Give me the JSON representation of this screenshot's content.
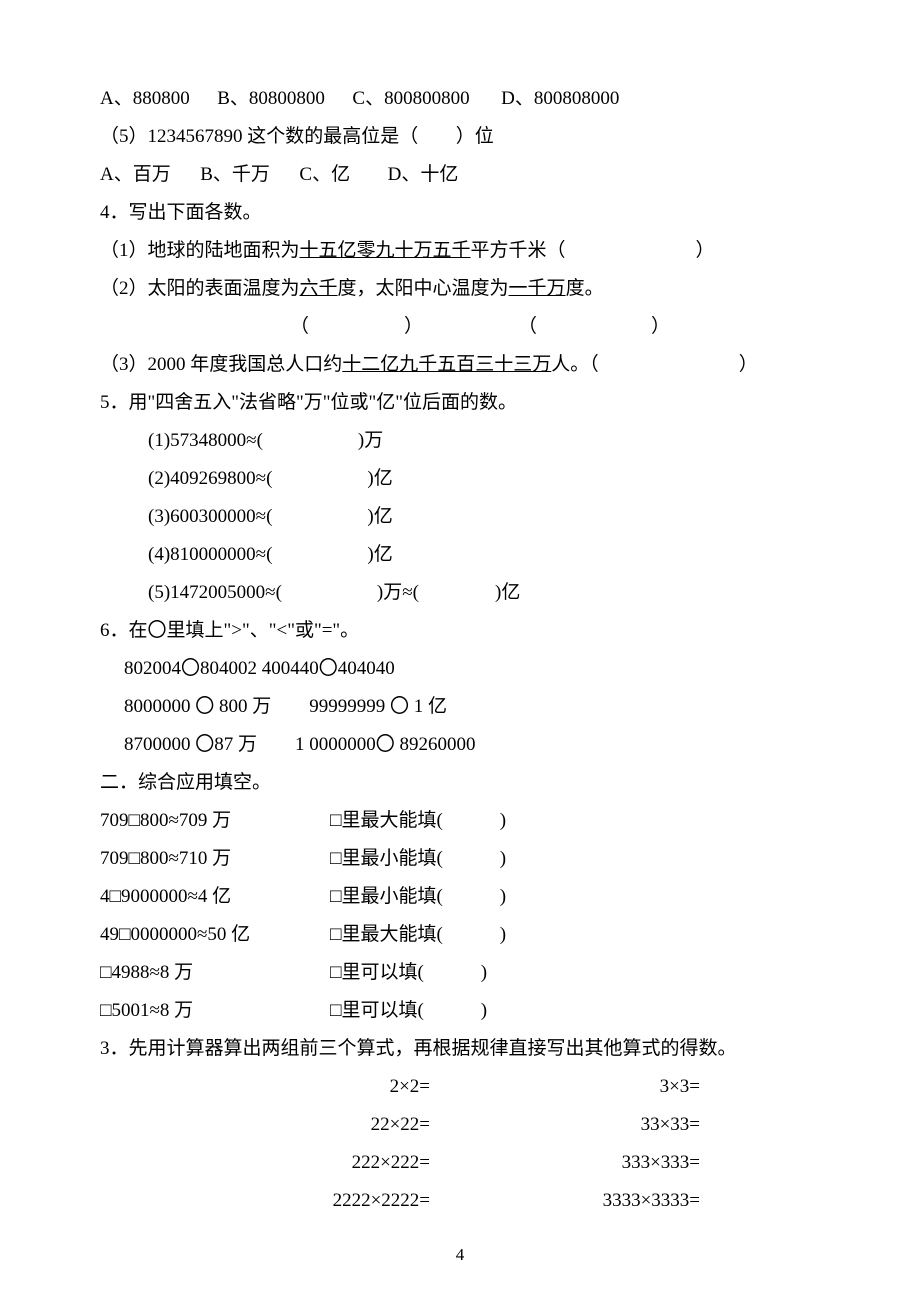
{
  "q4opts": {
    "a": "A、880800",
    "b": "B、80800800",
    "c": "C、800800800",
    "d": "D、800808000"
  },
  "q5": {
    "stem_l": "（5）1234567890 这个数的最高位是（",
    "stem_r": "）位",
    "a": "A、百万",
    "b": "B、千万",
    "c": "C、亿",
    "d": "D、十亿"
  },
  "s4": {
    "title": "4．写出下面各数。",
    "p1_a": "（1）地球的陆地面积为",
    "p1_u": "十五亿零九十万五千",
    "p1_b": "平方千米（",
    "p1_c": "）",
    "p2_a": "（2）太阳的表面温度为",
    "p2_u1": "六千",
    "p2_b": "度，太阳中心温度为",
    "p2_u2": "一千万",
    "p2_c": "度。",
    "p2_brk": "（　　　　　）　　　　　　（　　　　　　）",
    "p3_a": "（3）2000 年度我国总人口约",
    "p3_u": "十二亿九千五百三十三万",
    "p3_b": "人。（",
    "p3_c": "）"
  },
  "s5": {
    "title": "5．用\"四舍五入\"法省略\"万\"位或\"亿\"位后面的数。",
    "i1": "(1)57348000≈(　　　　　)万",
    "i2": "(2)409269800≈(　　　　　)亿",
    "i3": "(3)600300000≈(　　　　　)亿",
    "i4": "(4)810000000≈(　　　　　)亿",
    "i5": "(5)1472005000≈(　　　　　)万≈(　　　　)亿"
  },
  "s6": {
    "title": "6．在〇里填上\">\"、\"<\"或\"=\"。",
    "l1": "802004〇804002 400440〇404040",
    "l2": "8000000 〇 800 万　　99999999 〇 1 亿",
    "l3": "8700000 〇87 万　　1 0000000〇 89260000"
  },
  "sec2": {
    "title": "二．综合应用填空。",
    "rows": [
      {
        "c1": "709□800≈709 万",
        "c2": "□里最大能填(　　　)"
      },
      {
        "c1": "709□800≈710 万",
        "c2": "□里最小能填(　　　)"
      },
      {
        "c1": "4□9000000≈4 亿",
        "c2": "□里最小能填(　　　)"
      },
      {
        "c1": "49□0000000≈50 亿",
        "c2": "□里最大能填(　　　)"
      },
      {
        "c1": "□4988≈8 万",
        "c2": "□里可以填(　　　)"
      },
      {
        "c1": "□5001≈8 万",
        "c2": "□里可以填(　　　)"
      }
    ]
  },
  "s3b": {
    "title": "3．先用计算器算出两组前三个算式，再根据规律直接写出其他算式的得数。",
    "rows": [
      {
        "l": "2×2=",
        "r": "3×3="
      },
      {
        "l": "22×22=",
        "r": "33×33="
      },
      {
        "l": "222×222=",
        "r": "333×333="
      },
      {
        "l": "2222×2222=",
        "r": "3333×3333="
      }
    ]
  },
  "pageNumber": "4"
}
